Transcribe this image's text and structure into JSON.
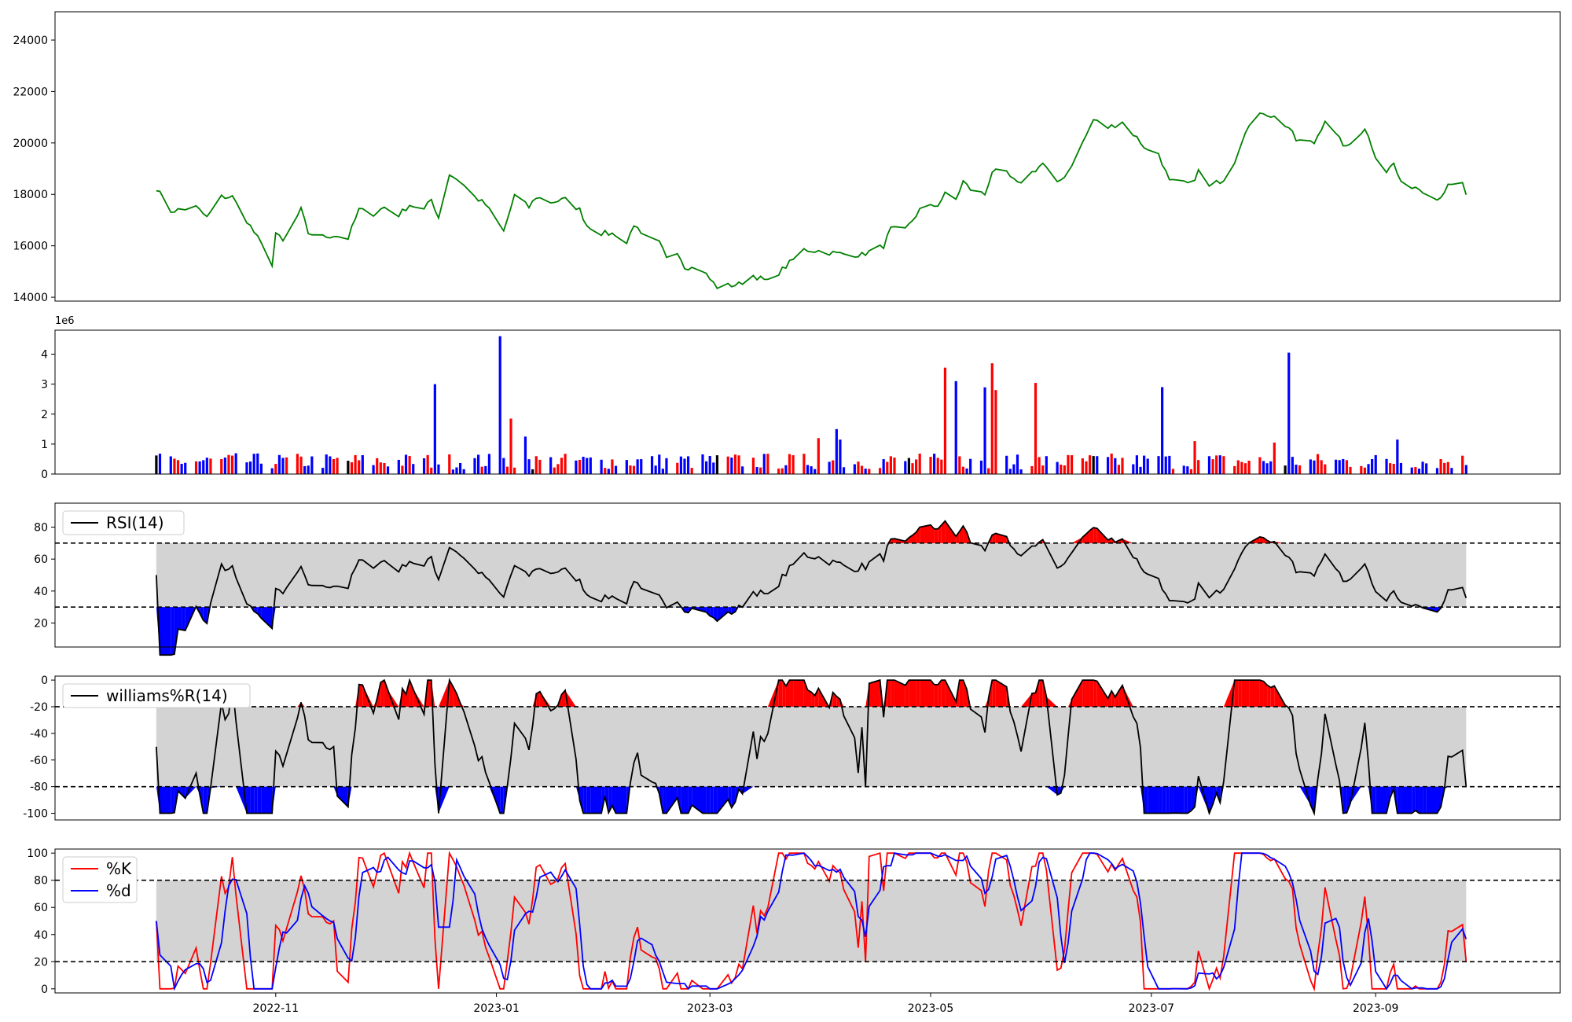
{
  "figure": {
    "x_axis_labels": [
      "2022-11",
      "2023-01",
      "2023-03",
      "2023-05",
      "2023-07",
      "2023-09"
    ],
    "colors": {
      "price": "#008000",
      "up": "#ff0000",
      "down": "#0000ff",
      "flat": "#000000",
      "band": "#d3d3d3",
      "overbought": "#ff0000",
      "oversold": "#0000ff",
      "k": "#ff0000",
      "d": "#0000ff",
      "line": "#000000"
    }
  },
  "chart_data": [
    {
      "type": "line",
      "name": "price",
      "x_start": "2022-09-29",
      "x_end": "2023-09-26",
      "xlim": [
        "2022-09-01",
        "2023-10-22"
      ],
      "ylim": [
        13850,
        25100
      ],
      "yticks": [
        14000,
        16000,
        18000,
        20000,
        22000,
        24000
      ],
      "ytick_labels": [
        "14000",
        "16000",
        "18000",
        "20000",
        "22000",
        "24000"
      ],
      "keypoints": [
        [
          "2022-09-29",
          18250
        ],
        [
          "2022-10-03",
          17350
        ],
        [
          "2022-10-10",
          17500
        ],
        [
          "2022-10-13",
          17100
        ],
        [
          "2022-10-17",
          17900
        ],
        [
          "2022-10-20",
          17900
        ],
        [
          "2022-10-27",
          16300
        ],
        [
          "2022-10-31",
          15300
        ],
        [
          "2022-11-01",
          16500
        ],
        [
          "2022-11-03",
          16150
        ],
        [
          "2022-11-08",
          17400
        ],
        [
          "2022-11-10",
          16500
        ],
        [
          "2022-11-14",
          16350
        ],
        [
          "2022-11-17",
          16400
        ],
        [
          "2022-11-21",
          16300
        ],
        [
          "2022-11-24",
          17400
        ],
        [
          "2022-11-28",
          17250
        ],
        [
          "2022-12-01",
          17500
        ],
        [
          "2022-12-05",
          17200
        ],
        [
          "2022-12-08",
          17600
        ],
        [
          "2022-12-12",
          17400
        ],
        [
          "2022-12-14",
          17800
        ],
        [
          "2022-12-16",
          17100
        ],
        [
          "2022-12-19",
          18800
        ],
        [
          "2022-12-22",
          18500
        ],
        [
          "2022-12-26",
          17900
        ],
        [
          "2022-12-29",
          17600
        ],
        [
          "2023-01-03",
          16550
        ],
        [
          "2023-01-06",
          17950
        ],
        [
          "2023-01-10",
          17500
        ],
        [
          "2023-01-12",
          17900
        ],
        [
          "2023-01-16",
          17700
        ],
        [
          "2023-01-20",
          17800
        ],
        [
          "2023-01-24",
          17400
        ],
        [
          "2023-01-26",
          16800
        ],
        [
          "2023-01-30",
          16500
        ],
        [
          "2023-02-03",
          16450
        ],
        [
          "2023-02-06",
          16100
        ],
        [
          "2023-02-08",
          16850
        ],
        [
          "2023-02-10",
          16400
        ],
        [
          "2023-02-15",
          16100
        ],
        [
          "2023-02-17",
          15600
        ],
        [
          "2023-02-20",
          15800
        ],
        [
          "2023-02-22",
          15200
        ],
        [
          "2023-02-27",
          15050
        ],
        [
          "2023-03-01",
          14700
        ],
        [
          "2023-03-03",
          14400
        ],
        [
          "2023-03-09",
          14500
        ],
        [
          "2023-03-13",
          14850
        ],
        [
          "2023-03-17",
          14600
        ],
        [
          "2023-03-22",
          15200
        ],
        [
          "2023-03-27",
          15850
        ],
        [
          "2023-03-31",
          15800
        ],
        [
          "2023-04-05",
          15700
        ],
        [
          "2023-04-12",
          15650
        ],
        [
          "2023-04-18",
          16000
        ],
        [
          "2023-04-20",
          16650
        ],
        [
          "2023-04-24",
          16600
        ],
        [
          "2023-04-28",
          17400
        ],
        [
          "2023-05-03",
          17600
        ],
        [
          "2023-05-05",
          18000
        ],
        [
          "2023-05-08",
          17800
        ],
        [
          "2023-05-10",
          18500
        ],
        [
          "2023-05-12",
          18200
        ],
        [
          "2023-05-16",
          18000
        ],
        [
          "2023-05-18",
          18900
        ],
        [
          "2023-05-22",
          18800
        ],
        [
          "2023-05-25",
          18400
        ],
        [
          "2023-05-29",
          18850
        ],
        [
          "2023-06-01",
          19200
        ],
        [
          "2023-06-05",
          18400
        ],
        [
          "2023-06-08",
          18900
        ],
        [
          "2023-06-12",
          20000
        ],
        [
          "2023-06-15",
          20900
        ],
        [
          "2023-06-19",
          20600
        ],
        [
          "2023-06-23",
          20800
        ],
        [
          "2023-06-27",
          20200
        ],
        [
          "2023-06-30",
          19700
        ],
        [
          "2023-07-03",
          19600
        ],
        [
          "2023-07-06",
          18500
        ],
        [
          "2023-07-12",
          18400
        ],
        [
          "2023-07-14",
          18900
        ],
        [
          "2023-07-17",
          18300
        ],
        [
          "2023-07-21",
          18600
        ],
        [
          "2023-07-24",
          19300
        ],
        [
          "2023-07-27",
          20500
        ],
        [
          "2023-08-01",
          21200
        ],
        [
          "2023-08-04",
          21000
        ],
        [
          "2023-08-08",
          20600
        ],
        [
          "2023-08-10",
          20100
        ],
        [
          "2023-08-15",
          20000
        ],
        [
          "2023-08-18",
          20900
        ],
        [
          "2023-08-21",
          20300
        ],
        [
          "2023-08-24",
          19800
        ],
        [
          "2023-08-29",
          20600
        ],
        [
          "2023-09-01",
          19500
        ],
        [
          "2023-09-04",
          18900
        ],
        [
          "2023-09-06",
          19200
        ],
        [
          "2023-09-08",
          18400
        ],
        [
          "2023-09-12",
          18300
        ],
        [
          "2023-09-15",
          18100
        ],
        [
          "2023-09-18",
          17800
        ],
        [
          "2023-09-21",
          18300
        ],
        [
          "2023-09-25",
          18400
        ],
        [
          "2023-09-26",
          18000
        ]
      ],
      "note_keypoints_are_read_from_chart": "green single series"
    }
  ]
}
